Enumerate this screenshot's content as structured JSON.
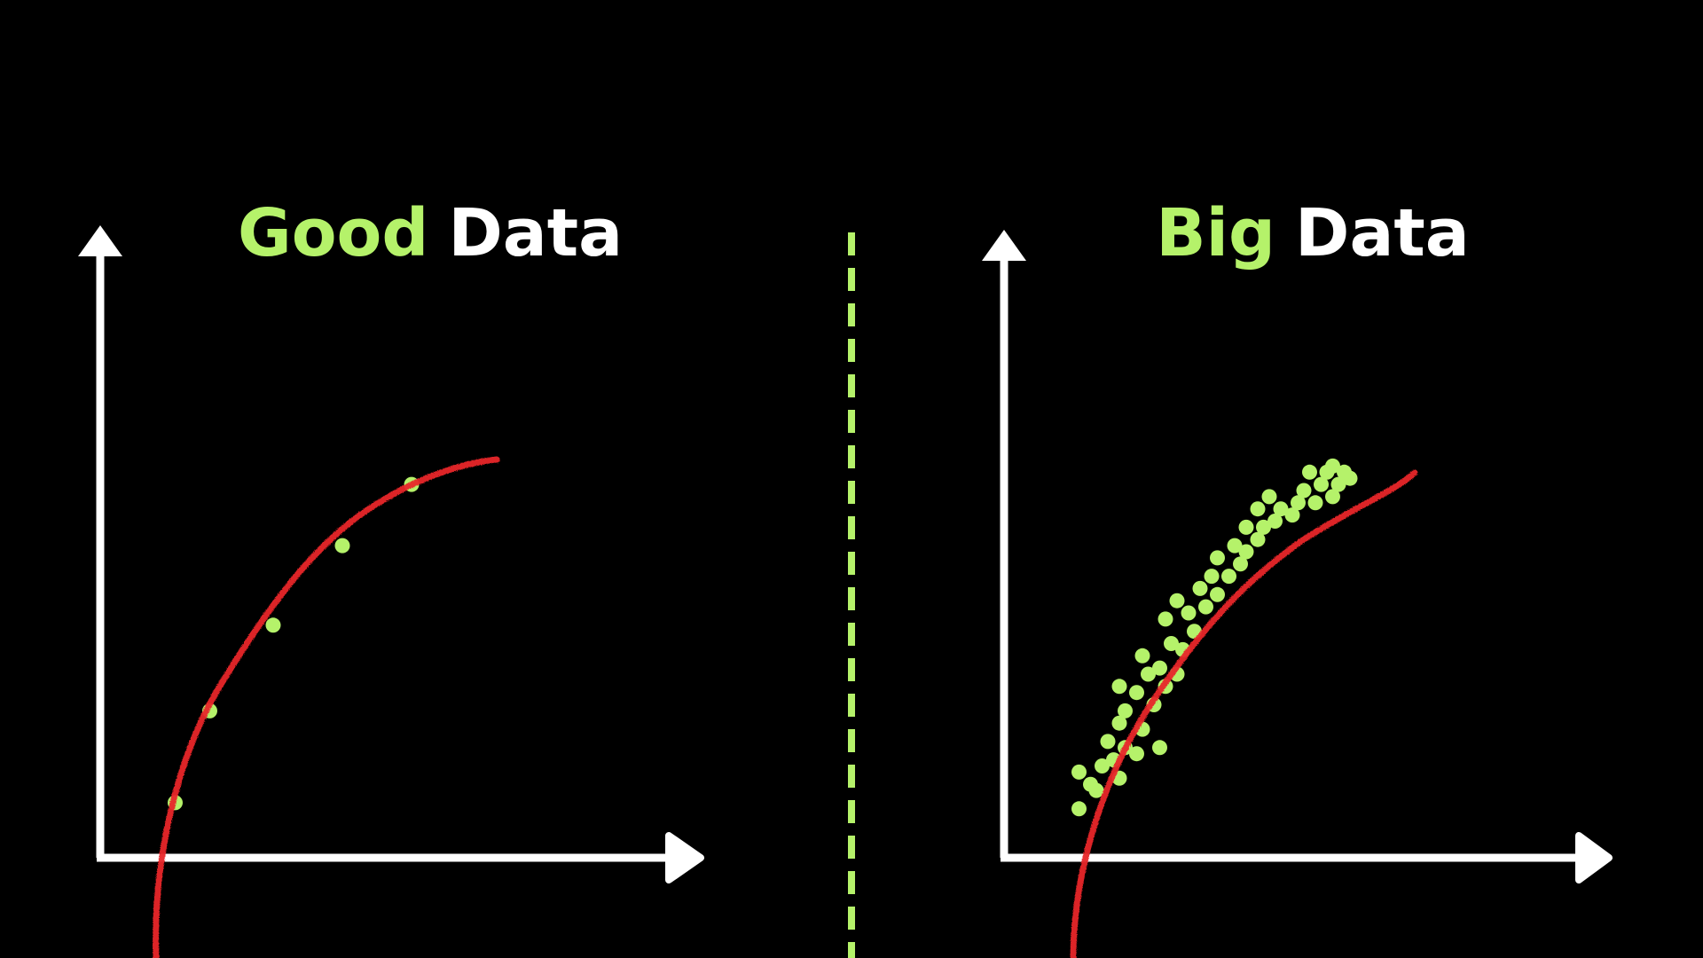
{
  "colors": {
    "background": "#000000",
    "accent": "#b5f26a",
    "axis": "#ffffff",
    "curve": "#e8262b"
  },
  "left_panel": {
    "title_accent": "Good",
    "title_rest": "Data",
    "points": [
      [
        0.13,
        0.09
      ],
      [
        0.19,
        0.24
      ],
      [
        0.3,
        0.38
      ],
      [
        0.42,
        0.51
      ],
      [
        0.54,
        0.61
      ]
    ]
  },
  "right_panel": {
    "title_accent": "Big",
    "title_rest": "Data",
    "points": [
      [
        0.13,
        0.08
      ],
      [
        0.16,
        0.11
      ],
      [
        0.13,
        0.14
      ],
      [
        0.17,
        0.15
      ],
      [
        0.15,
        0.12
      ],
      [
        0.2,
        0.13
      ],
      [
        0.19,
        0.16
      ],
      [
        0.21,
        0.18
      ],
      [
        0.18,
        0.19
      ],
      [
        0.23,
        0.17
      ],
      [
        0.2,
        0.22
      ],
      [
        0.24,
        0.21
      ],
      [
        0.21,
        0.24
      ],
      [
        0.27,
        0.18
      ],
      [
        0.23,
        0.27
      ],
      [
        0.2,
        0.28
      ],
      [
        0.26,
        0.25
      ],
      [
        0.28,
        0.28
      ],
      [
        0.25,
        0.3
      ],
      [
        0.27,
        0.31
      ],
      [
        0.24,
        0.33
      ],
      [
        0.3,
        0.3
      ],
      [
        0.31,
        0.34
      ],
      [
        0.29,
        0.35
      ],
      [
        0.28,
        0.39
      ],
      [
        0.33,
        0.37
      ],
      [
        0.32,
        0.4
      ],
      [
        0.3,
        0.42
      ],
      [
        0.35,
        0.41
      ],
      [
        0.34,
        0.44
      ],
      [
        0.37,
        0.43
      ],
      [
        0.36,
        0.46
      ],
      [
        0.39,
        0.46
      ],
      [
        0.37,
        0.49
      ],
      [
        0.41,
        0.48
      ],
      [
        0.4,
        0.51
      ],
      [
        0.42,
        0.5
      ],
      [
        0.44,
        0.52
      ],
      [
        0.42,
        0.54
      ],
      [
        0.45,
        0.54
      ],
      [
        0.47,
        0.55
      ],
      [
        0.44,
        0.57
      ],
      [
        0.5,
        0.56
      ],
      [
        0.48,
        0.57
      ],
      [
        0.46,
        0.59
      ],
      [
        0.51,
        0.58
      ],
      [
        0.54,
        0.58
      ],
      [
        0.52,
        0.6
      ],
      [
        0.55,
        0.61
      ],
      [
        0.57,
        0.59
      ],
      [
        0.53,
        0.63
      ],
      [
        0.56,
        0.63
      ],
      [
        0.58,
        0.61
      ],
      [
        0.6,
        0.62
      ],
      [
        0.59,
        0.63
      ],
      [
        0.57,
        0.64
      ]
    ]
  }
}
